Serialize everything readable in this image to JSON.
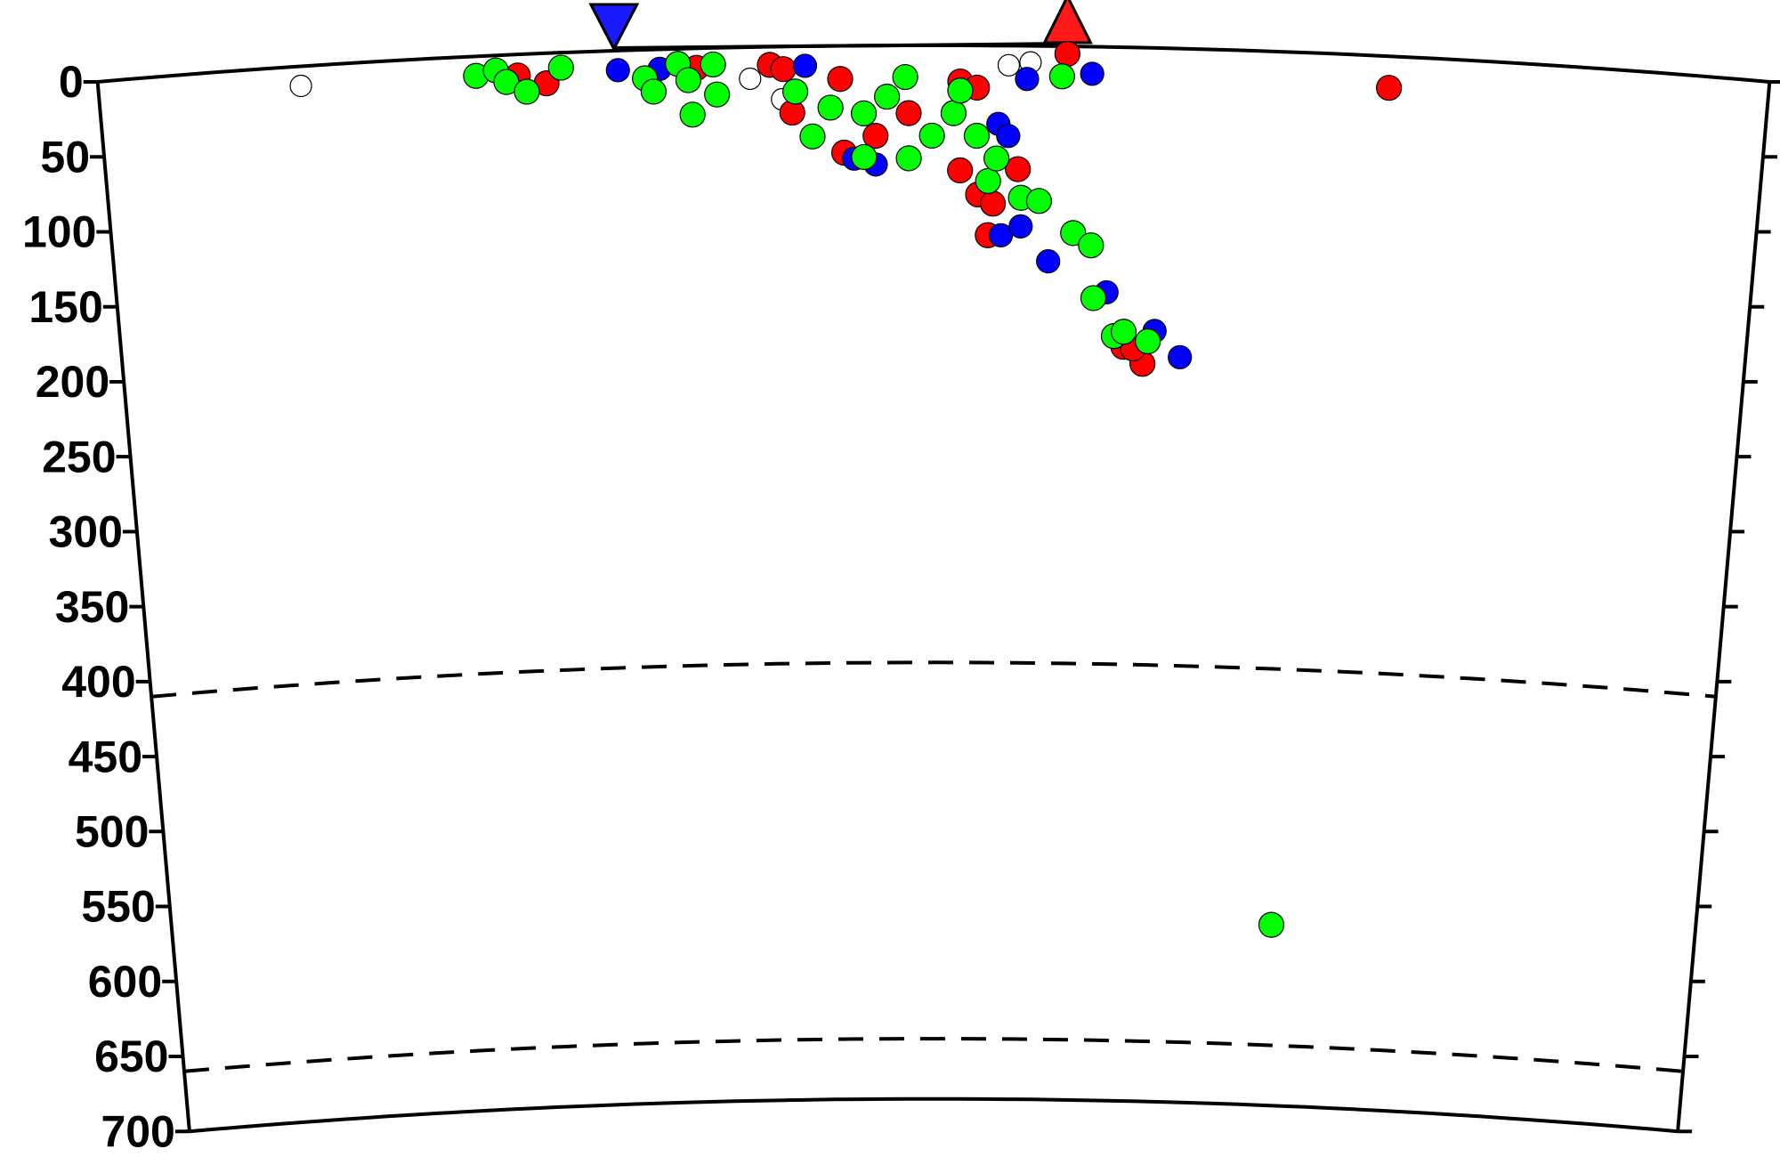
{
  "chart_data": {
    "type": "scatter",
    "xlim": [
      0,
      10
    ],
    "ylim": [
      0,
      700
    ],
    "yticks": [
      0,
      50,
      100,
      150,
      200,
      250,
      300,
      350,
      400,
      450,
      500,
      550,
      600,
      650,
      700
    ],
    "y_inverted": true,
    "dashed_depths": [
      410,
      660
    ],
    "markers": [
      {
        "x": 3.09,
        "color": "#1a1aff",
        "shape": "down"
      },
      {
        "x": 5.8,
        "color": "#ff1a1a",
        "shape": "up"
      }
    ],
    "series": [
      {
        "color": "#ffffff",
        "x": [
          1.21,
          3.9,
          4.09,
          5.45,
          5.58
        ],
        "values": [
          13,
          21,
          35,
          13,
          11
        ]
      },
      {
        "color": "#ff0000",
        "x": [
          2.51,
          2.68,
          3.58,
          4.02,
          4.1,
          4.15,
          4.46,
          4.65,
          4.44,
          4.85,
          5.16,
          5.26,
          5.16,
          5.27,
          5.36,
          5.33,
          5.51,
          5.8,
          6.17,
          6.29,
          6.23,
          7.73
        ],
        "values": [
          14,
          20,
          13,
          12,
          15,
          44,
          71,
          60,
          22,
          45,
          24,
          28,
          83,
          99,
          105,
          126,
          82,
          5,
          199,
          210,
          200,
          21
        ]
      },
      {
        "color": "#0000ff",
        "x": [
          3.11,
          3.36,
          4.23,
          4.52,
          4.65,
          5.39,
          5.45,
          5.41,
          5.53,
          5.56,
          5.95,
          5.7,
          6.06,
          6.36,
          6.52
        ],
        "values": [
          13,
          13,
          13,
          75,
          79,
          52,
          60,
          126,
          120,
          22,
          18,
          143,
          163,
          188,
          205
        ]
      },
      {
        "color": "#00ff00",
        "x": [
          2.26,
          2.38,
          2.44,
          2.56,
          2.77,
          3.27,
          3.32,
          3.47,
          3.53,
          3.55,
          3.68,
          3.7,
          4.17,
          4.27,
          4.38,
          4.58,
          4.58,
          4.72,
          4.83,
          4.85,
          4.99,
          5.12,
          5.16,
          5.26,
          5.33,
          5.38,
          5.53,
          5.64,
          5.77,
          5.85,
          5.96,
          5.98,
          6.11,
          6.17,
          6.32,
          7.22
        ],
        "values": [
          13,
          10,
          18,
          25,
          10,
          19,
          28,
          10,
          21,
          44,
          11,
          31,
          30,
          60,
          41,
          74,
          45,
          34,
          21,
          75,
          60,
          45,
          30,
          60,
          90,
          75,
          101,
          103,
          20,
          124,
          132,
          167,
          192,
          189,
          195,
          580
        ]
      }
    ]
  }
}
